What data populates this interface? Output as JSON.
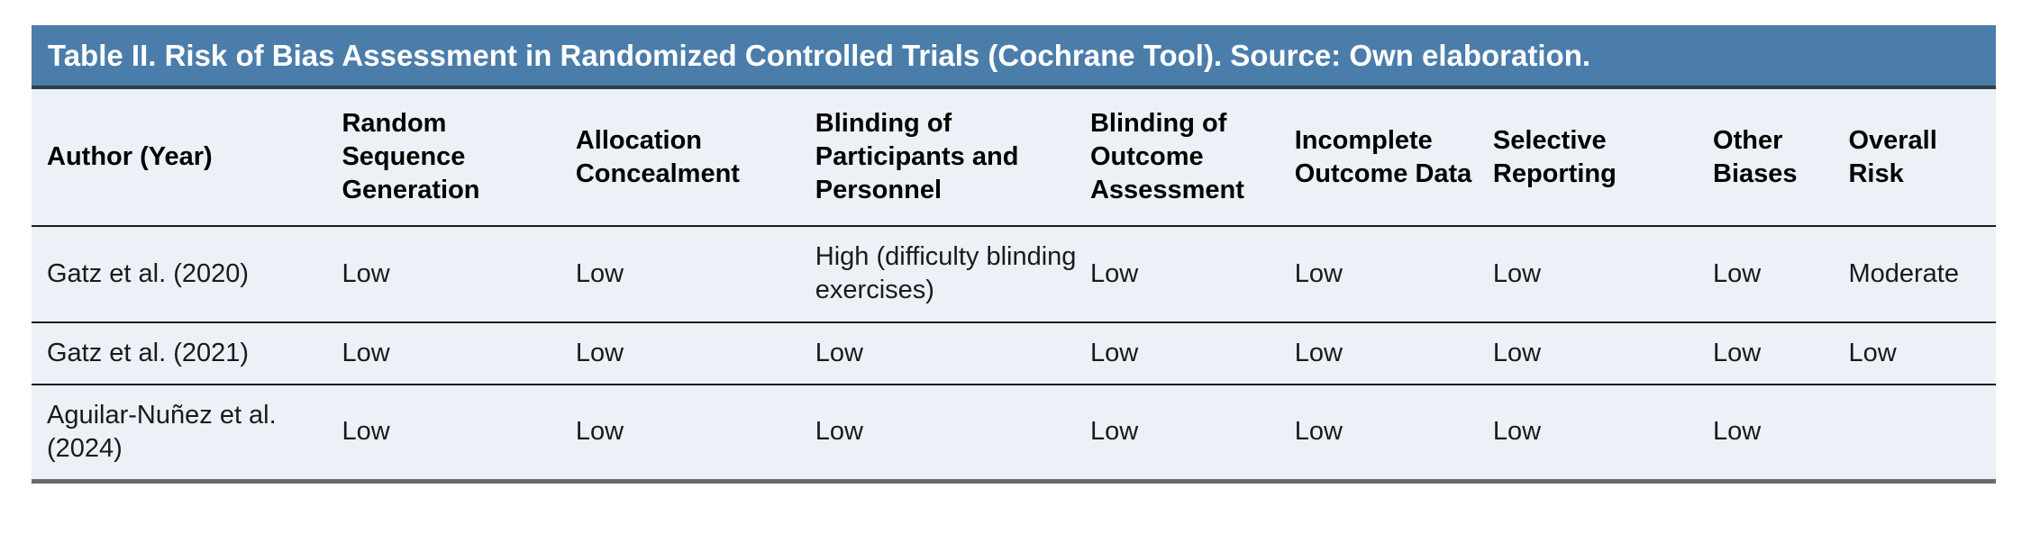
{
  "title_bar": {
    "title": "Table II. Risk of Bias Assessment in Randomized Controlled Trials (Cochrane Tool). Source: Own elaboration."
  },
  "colors": {
    "title_bar_bg": "#4b7dab",
    "title_bar_border": "#2e3d4a",
    "title_text": "#ffffff",
    "table_body_bg": "#ecf0f7",
    "row_divider": "#1c1c1c",
    "bottom_border": "#6b6b6b",
    "header_text": "#000000",
    "body_text": "#1a1a1a"
  },
  "table": {
    "columns": [
      "Author (Year)",
      "Random Sequence Generation",
      "Allocation Concealment",
      "Blinding of Participants and Personnel",
      "Blinding of Outcome Assessment",
      "Incomplete Outcome Data",
      "Selective Reporting",
      "Other Biases",
      "Overall Risk"
    ],
    "rows": [
      {
        "cells": [
          "Gatz et al. (2020)",
          "Low",
          "Low",
          "High (difficulty blinding exercises)",
          "Low",
          "Low",
          "Low",
          "Low",
          "Moderate"
        ]
      },
      {
        "cells": [
          "Gatz et al. (2021)",
          "Low",
          "Low",
          "Low",
          "Low",
          "Low",
          "Low",
          "Low",
          "Low"
        ]
      },
      {
        "cells": [
          "Aguilar-Nuñez et al. (2024)",
          "Low",
          "Low",
          "Low",
          "Low",
          "Low",
          "Low",
          "Low",
          ""
        ]
      }
    ]
  }
}
